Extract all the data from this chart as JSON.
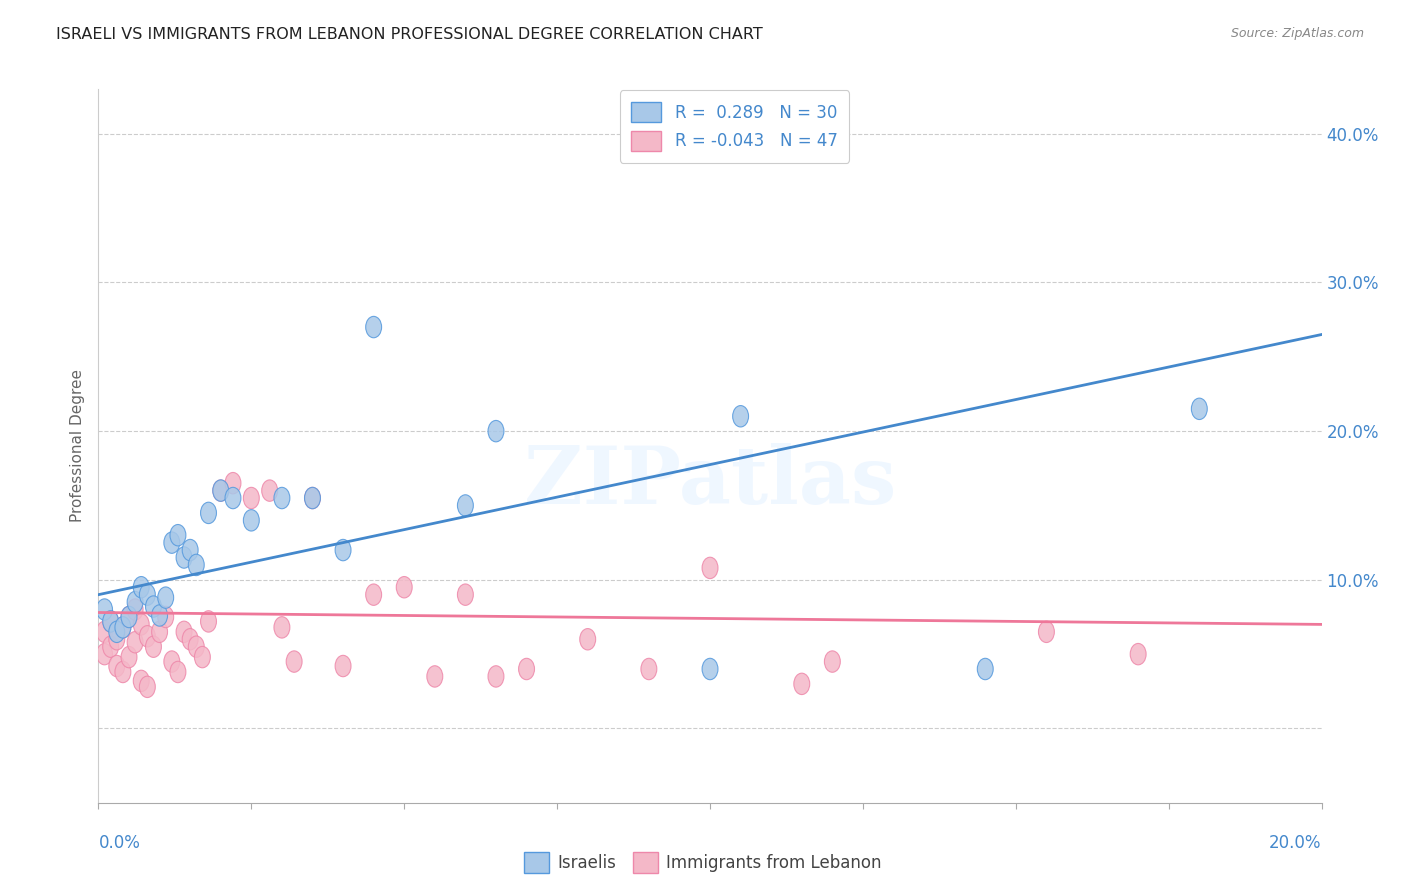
{
  "title": "ISRAELI VS IMMIGRANTS FROM LEBANON PROFESSIONAL DEGREE CORRELATION CHART",
  "source": "Source: ZipAtlas.com",
  "ylabel": "Professional Degree",
  "blue_color": "#A8C8E8",
  "pink_color": "#F4B8C8",
  "blue_line_color": "#4488CC",
  "pink_line_color": "#EE7799",
  "blue_edge_color": "#5599DD",
  "pink_edge_color": "#EE88AA",
  "watermark": "ZIPatlas",
  "legend1_label": "R =  0.289   N = 30",
  "legend2_label": "R = -0.043   N = 47",
  "legend_label1_bottom": "Israelis",
  "legend_label2_bottom": "Immigrants from Lebanon",
  "xmin": 0.0,
  "xmax": 0.2,
  "ymin": -0.05,
  "ymax": 0.43,
  "ytick_values": [
    0.0,
    0.1,
    0.2,
    0.3,
    0.4
  ],
  "blue_line_x0": 0.0,
  "blue_line_y0": 0.09,
  "blue_line_x1": 0.2,
  "blue_line_y1": 0.265,
  "pink_line_x0": 0.0,
  "pink_line_y0": 0.078,
  "pink_line_x1": 0.2,
  "pink_line_y1": 0.07,
  "israelis_x": [
    0.001,
    0.002,
    0.003,
    0.004,
    0.005,
    0.006,
    0.007,
    0.008,
    0.009,
    0.01,
    0.011,
    0.012,
    0.013,
    0.014,
    0.015,
    0.016,
    0.018,
    0.02,
    0.022,
    0.025,
    0.03,
    0.035,
    0.04,
    0.045,
    0.06,
    0.065,
    0.1,
    0.105,
    0.145,
    0.18
  ],
  "israelis_y": [
    0.08,
    0.072,
    0.065,
    0.068,
    0.075,
    0.085,
    0.095,
    0.09,
    0.082,
    0.076,
    0.088,
    0.125,
    0.13,
    0.115,
    0.12,
    0.11,
    0.145,
    0.16,
    0.155,
    0.14,
    0.155,
    0.155,
    0.12,
    0.27,
    0.15,
    0.2,
    0.04,
    0.21,
    0.04,
    0.215
  ],
  "lebanon_x": [
    0.001,
    0.001,
    0.002,
    0.002,
    0.003,
    0.003,
    0.004,
    0.004,
    0.005,
    0.005,
    0.006,
    0.006,
    0.007,
    0.007,
    0.008,
    0.008,
    0.009,
    0.01,
    0.011,
    0.012,
    0.013,
    0.014,
    0.015,
    0.016,
    0.017,
    0.018,
    0.02,
    0.022,
    0.025,
    0.028,
    0.03,
    0.032,
    0.035,
    0.04,
    0.045,
    0.05,
    0.055,
    0.06,
    0.065,
    0.07,
    0.08,
    0.09,
    0.1,
    0.115,
    0.12,
    0.155,
    0.17
  ],
  "lebanon_y": [
    0.065,
    0.05,
    0.072,
    0.055,
    0.06,
    0.042,
    0.068,
    0.038,
    0.075,
    0.048,
    0.08,
    0.058,
    0.07,
    0.032,
    0.062,
    0.028,
    0.055,
    0.065,
    0.075,
    0.045,
    0.038,
    0.065,
    0.06,
    0.055,
    0.048,
    0.072,
    0.16,
    0.165,
    0.155,
    0.16,
    0.068,
    0.045,
    0.155,
    0.042,
    0.09,
    0.095,
    0.035,
    0.09,
    0.035,
    0.04,
    0.06,
    0.04,
    0.108,
    0.03,
    0.045,
    0.065,
    0.05
  ]
}
